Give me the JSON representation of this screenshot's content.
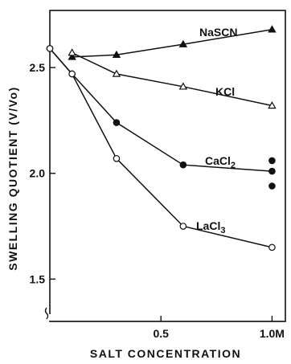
{
  "chart_data": {
    "type": "line",
    "title": "",
    "xlabel": "SALT CONCENTRATION",
    "ylabel": "SWELLING QUOTIENT (V/Vo)",
    "xlim": [
      0,
      1.06
    ],
    "ylim": [
      1.3,
      2.77
    ],
    "x_ticks": [
      {
        "value": 0.5,
        "label": "0.5"
      },
      {
        "value": 1.0,
        "label": "1.0M"
      }
    ],
    "y_ticks": [
      {
        "value": 1.5,
        "label": "1.5"
      },
      {
        "value": 2.0,
        "label": "2.0"
      },
      {
        "value": 2.5,
        "label": "2.5"
      }
    ],
    "grid": false,
    "y_axis_break": true,
    "series": [
      {
        "name": "NaSCN",
        "label_main": "NaSCN",
        "label_sub": "",
        "marker": "filled-triangle",
        "x": [
          0.1,
          0.3,
          0.6,
          1.0
        ],
        "y": [
          2.55,
          2.56,
          2.61,
          2.68
        ]
      },
      {
        "name": "KCl",
        "label_main": "KCl",
        "label_sub": "",
        "marker": "open-triangle",
        "x": [
          0.1,
          0.3,
          0.6,
          1.0
        ],
        "y": [
          2.57,
          2.47,
          2.41,
          2.32
        ]
      },
      {
        "name": "CaCl2",
        "label_main": "CaCl",
        "label_sub": "2",
        "marker": "filled-circle",
        "x": [
          0.0,
          0.1,
          0.3,
          0.6,
          1.0
        ],
        "y": [
          2.59,
          2.47,
          2.24,
          2.04,
          2.01
        ],
        "extra_points": [
          {
            "x": 1.0,
            "y": 2.06
          },
          {
            "x": 1.0,
            "y": 1.94
          }
        ]
      },
      {
        "name": "LaCl3",
        "label_main": "LaCl",
        "label_sub": "3",
        "marker": "open-circle",
        "x": [
          0.0,
          0.1,
          0.3,
          0.6,
          1.0
        ],
        "y": [
          2.59,
          2.47,
          2.07,
          1.75,
          1.65
        ]
      }
    ]
  }
}
